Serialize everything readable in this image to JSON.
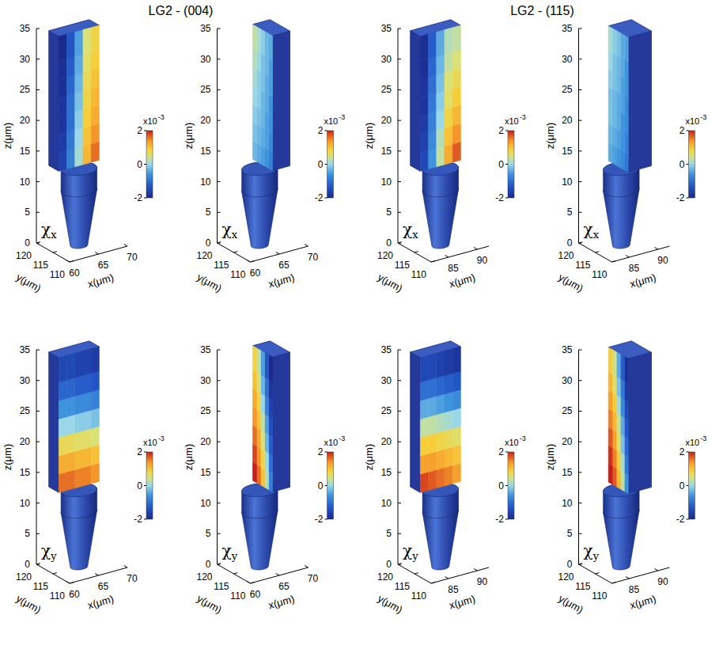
{
  "figure": {
    "titles": [
      "LG2 - (004)",
      "LG2 - (115)"
    ]
  },
  "chart_data": [
    {
      "type": "volume",
      "label": "χx",
      "xlabel": "x(μm)",
      "ylabel": "y(μm)",
      "zlabel": "z(μm)",
      "xlim": [
        60,
        70
      ],
      "xticks": [
        60,
        65,
        70
      ],
      "ylim": [
        110,
        120
      ],
      "yticks": [
        110,
        115,
        120
      ],
      "zlim": [
        0,
        35
      ],
      "zticks": [
        0,
        5,
        10,
        15,
        20,
        25,
        30,
        35
      ],
      "tip": {
        "x": 64.5,
        "y": 115,
        "z": [
          0,
          9,
          12.5
        ],
        "r": [
          1.3,
          2.7
        ]
      },
      "wire": {
        "x": [
          61,
          68
        ],
        "y": [
          112,
          118
        ],
        "z": [
          13,
          35
        ]
      },
      "plane": {
        "axis": "y",
        "value": 115
      },
      "cells": {
        "z": [
          13,
          16,
          19,
          22,
          25,
          28,
          31,
          35
        ],
        "s": [
          61,
          62.4,
          63.8,
          65.2,
          66.6,
          68
        ],
        "values": [
          [
            -1.6,
            -0.8,
            0.1,
            1.1,
            1.6
          ],
          [
            -1.7,
            -0.9,
            0.0,
            1.0,
            1.4
          ],
          [
            -1.8,
            -1.0,
            -0.1,
            0.9,
            1.2
          ],
          [
            -1.8,
            -1.0,
            -0.2,
            0.8,
            1.1
          ],
          [
            -1.9,
            -1.1,
            -0.3,
            0.7,
            1.0
          ],
          [
            -1.9,
            -1.2,
            -0.4,
            0.6,
            0.9
          ],
          [
            -2.0,
            -1.3,
            -0.5,
            0.5,
            0.8
          ]
        ]
      },
      "colorbar": {
        "range": [
          -2,
          2
        ],
        "ticks": [
          -2,
          0,
          2
        ],
        "multiplier": "x10",
        "exponent": "-3"
      }
    },
    {
      "type": "volume",
      "label": "χx",
      "xlabel": "x(μm)",
      "ylabel": "y(μm)",
      "zlabel": "z(μm)",
      "xlim": [
        60,
        70
      ],
      "xticks": [
        60,
        65,
        70
      ],
      "ylim": [
        110,
        120
      ],
      "yticks": [
        110,
        115,
        120
      ],
      "zlim": [
        0,
        35
      ],
      "zticks": [
        0,
        5,
        10,
        15,
        20,
        25,
        30,
        35
      ],
      "tip": {
        "x": 64.5,
        "y": 115,
        "z": [
          0,
          9,
          12.5
        ],
        "r": [
          1.3,
          2.7
        ]
      },
      "wire": {
        "x": [
          61,
          68
        ],
        "y": [
          112,
          118
        ],
        "z": [
          13,
          35
        ]
      },
      "plane": {
        "axis": "x",
        "value": 65
      },
      "cells": {
        "z": [
          13,
          16,
          19,
          22,
          25,
          28,
          31,
          35
        ],
        "s": [
          112,
          113.2,
          114.4,
          115.6,
          116.8,
          118
        ],
        "values": [
          [
            -0.8,
            -0.6,
            -0.5,
            -0.4,
            -0.3
          ],
          [
            -0.7,
            -0.5,
            -0.4,
            -0.3,
            -0.2
          ],
          [
            -0.6,
            -0.5,
            -0.3,
            -0.2,
            -0.1
          ],
          [
            -0.6,
            -0.4,
            -0.3,
            -0.1,
            0.0
          ],
          [
            -0.5,
            -0.4,
            -0.2,
            -0.1,
            0.1
          ],
          [
            -0.5,
            -0.3,
            -0.2,
            0.0,
            0.2
          ],
          [
            -0.4,
            -0.3,
            -0.1,
            0.1,
            0.3
          ]
        ]
      },
      "colorbar": {
        "range": [
          -2,
          2
        ],
        "ticks": [
          -2,
          0,
          2
        ],
        "multiplier": "x10",
        "exponent": "-3"
      }
    },
    {
      "type": "volume",
      "label": "χx",
      "xlabel": "x(μm)",
      "ylabel": "y(μm)",
      "zlabel": "z(μm)",
      "xlim": [
        82,
        92
      ],
      "xticks": [
        85,
        90
      ],
      "ylim": [
        110,
        120
      ],
      "yticks": [
        110,
        115,
        120
      ],
      "zlim": [
        0,
        35
      ],
      "zticks": [
        0,
        5,
        10,
        15,
        20,
        25,
        30,
        35
      ],
      "tip": {
        "x": 86.5,
        "y": 115,
        "z": [
          0,
          9,
          12.5
        ],
        "r": [
          1.3,
          2.7
        ]
      },
      "wire": {
        "x": [
          83,
          90
        ],
        "y": [
          112,
          118
        ],
        "z": [
          13,
          35
        ]
      },
      "plane": {
        "axis": "y",
        "value": 115
      },
      "cells": {
        "z": [
          13,
          16,
          19,
          22,
          25,
          28,
          31,
          35
        ],
        "s": [
          83,
          84.4,
          85.8,
          87.2,
          88.6,
          90
        ],
        "values": [
          [
            -1.5,
            -0.6,
            0.3,
            1.2,
            1.7
          ],
          [
            -1.6,
            -0.7,
            0.2,
            1.0,
            1.4
          ],
          [
            -1.7,
            -0.8,
            0.0,
            0.8,
            1.1
          ],
          [
            -1.8,
            -0.9,
            -0.1,
            0.6,
            0.9
          ],
          [
            -1.8,
            -1.0,
            -0.2,
            0.5,
            0.7
          ],
          [
            -1.9,
            -1.1,
            -0.3,
            0.3,
            0.5
          ],
          [
            -1.9,
            -1.2,
            -0.4,
            0.2,
            0.3
          ]
        ]
      },
      "colorbar": {
        "range": [
          -2,
          2
        ],
        "ticks": [
          -2,
          0,
          2
        ],
        "multiplier": "x10",
        "exponent": "-3"
      }
    },
    {
      "type": "volume",
      "label": "χx",
      "xlabel": "x(μm)",
      "ylabel": "y(μm)",
      "zlabel": "z(μm)",
      "xlim": [
        82,
        92
      ],
      "xticks": [
        85,
        90
      ],
      "ylim": [
        110,
        120
      ],
      "yticks": [
        110,
        115,
        120
      ],
      "zlim": [
        0,
        35
      ],
      "zticks": [
        0,
        5,
        10,
        15,
        20,
        25,
        30,
        35
      ],
      "tip": {
        "x": 86.5,
        "y": 115,
        "z": [
          0,
          9,
          12.5
        ],
        "r": [
          1.3,
          2.7
        ]
      },
      "wire": {
        "x": [
          83,
          90
        ],
        "y": [
          112,
          118
        ],
        "z": [
          13,
          35
        ]
      },
      "plane": {
        "axis": "x",
        "value": 86
      },
      "cells": {
        "z": [
          13,
          16,
          19,
          22,
          25,
          28,
          31,
          35
        ],
        "s": [
          112,
          113.2,
          114.4,
          115.6,
          116.8,
          118
        ],
        "values": [
          [
            -0.9,
            -0.7,
            -0.6,
            -0.5,
            -0.4
          ],
          [
            -0.8,
            -0.6,
            -0.5,
            -0.4,
            -0.3
          ],
          [
            -0.7,
            -0.6,
            -0.4,
            -0.3,
            -0.2
          ],
          [
            -0.7,
            -0.5,
            -0.4,
            -0.3,
            -0.2
          ],
          [
            -0.6,
            -0.5,
            -0.3,
            -0.2,
            -0.1
          ],
          [
            -0.6,
            -0.4,
            -0.3,
            -0.2,
            0.0
          ],
          [
            -0.5,
            -0.4,
            -0.2,
            -0.1,
            0.1
          ]
        ]
      },
      "colorbar": {
        "range": [
          -2,
          2
        ],
        "ticks": [
          -2,
          0,
          2
        ],
        "multiplier": "x10",
        "exponent": "-3"
      }
    },
    {
      "type": "volume",
      "label": "χy",
      "xlabel": "x(μm)",
      "ylabel": "y(μm)",
      "zlabel": "z(μm)",
      "xlim": [
        60,
        70
      ],
      "xticks": [
        60,
        65,
        70
      ],
      "ylim": [
        110,
        120
      ],
      "yticks": [
        110,
        115,
        120
      ],
      "zlim": [
        0,
        35
      ],
      "zticks": [
        0,
        5,
        10,
        15,
        20,
        25,
        30,
        35
      ],
      "tip": {
        "x": 64.5,
        "y": 115,
        "z": [
          0,
          9,
          12.5
        ],
        "r": [
          1.3,
          2.7
        ]
      },
      "wire": {
        "x": [
          61,
          68
        ],
        "y": [
          112,
          118
        ],
        "z": [
          13,
          35
        ]
      },
      "plane": {
        "axis": "y",
        "value": 115
      },
      "cells": {
        "z": [
          13,
          16,
          19,
          22,
          25,
          28,
          31,
          35
        ],
        "s": [
          61,
          62.4,
          63.8,
          65.2,
          66.6,
          68
        ],
        "values": [
          [
            1.6,
            1.6,
            1.5,
            1.5,
            1.4
          ],
          [
            1.2,
            1.2,
            1.1,
            1.1,
            1.0
          ],
          [
            0.7,
            0.7,
            0.6,
            0.6,
            0.5
          ],
          [
            0.0,
            0.0,
            -0.1,
            -0.1,
            -0.2
          ],
          [
            -0.6,
            -0.6,
            -0.7,
            -0.7,
            -0.8
          ],
          [
            -1.1,
            -1.1,
            -1.2,
            -1.2,
            -1.3
          ],
          [
            -1.5,
            -1.5,
            -1.6,
            -1.6,
            -1.7
          ]
        ]
      },
      "colorbar": {
        "range": [
          -2,
          2
        ],
        "ticks": [
          -2,
          0,
          2
        ],
        "multiplier": "x10",
        "exponent": "-3"
      }
    },
    {
      "type": "volume",
      "label": "χy",
      "xlabel": "x(μm)",
      "ylabel": "y(μm)",
      "zlabel": "z(μm)",
      "xlim": [
        60,
        70
      ],
      "xticks": [
        60,
        65,
        70
      ],
      "ylim": [
        110,
        120
      ],
      "yticks": [
        110,
        115,
        120
      ],
      "zlim": [
        0,
        35
      ],
      "zticks": [
        0,
        5,
        10,
        15,
        20,
        25,
        30,
        35
      ],
      "tip": {
        "x": 64.5,
        "y": 115,
        "z": [
          0,
          9,
          12.5
        ],
        "r": [
          1.3,
          2.7
        ]
      },
      "wire": {
        "x": [
          61,
          68
        ],
        "y": [
          112,
          118
        ],
        "z": [
          13,
          35
        ]
      },
      "plane": {
        "axis": "x",
        "value": 65
      },
      "cells": {
        "z": [
          13,
          16,
          19,
          22,
          25,
          28,
          31,
          35
        ],
        "s": [
          112,
          113.2,
          114.4,
          115.6,
          116.8,
          118
        ],
        "values": [
          [
            -0.8,
            0.2,
            1.0,
            1.6,
            2.0
          ],
          [
            -1.0,
            0.0,
            0.8,
            1.4,
            1.8
          ],
          [
            -1.2,
            -0.3,
            0.5,
            1.2,
            1.6
          ],
          [
            -1.4,
            -0.5,
            0.3,
            1.0,
            1.4
          ],
          [
            -1.6,
            -0.8,
            0.0,
            0.8,
            1.2
          ],
          [
            -1.8,
            -1.0,
            -0.3,
            0.5,
            1.0
          ],
          [
            -2.0,
            -1.3,
            -0.5,
            0.3,
            0.8
          ]
        ]
      },
      "colorbar": {
        "range": [
          -2,
          2
        ],
        "ticks": [
          -2,
          0,
          2
        ],
        "multiplier": "x10",
        "exponent": "-3"
      }
    },
    {
      "type": "volume",
      "label": "χy",
      "xlabel": "x(μm)",
      "ylabel": "y(μm)",
      "zlabel": "z(μm)",
      "xlim": [
        82,
        92
      ],
      "xticks": [
        85,
        90
      ],
      "ylim": [
        110,
        120
      ],
      "yticks": [
        110,
        115,
        120
      ],
      "zlim": [
        0,
        35
      ],
      "zticks": [
        0,
        5,
        10,
        15,
        20,
        25,
        30,
        35
      ],
      "tip": {
        "x": 86.5,
        "y": 115,
        "z": [
          0,
          9,
          12.5
        ],
        "r": [
          1.3,
          2.7
        ]
      },
      "wire": {
        "x": [
          83,
          90
        ],
        "y": [
          112,
          118
        ],
        "z": [
          13,
          35
        ]
      },
      "plane": {
        "axis": "y",
        "value": 115
      },
      "cells": {
        "z": [
          13,
          16,
          19,
          22,
          25,
          28,
          31,
          35
        ],
        "s": [
          83,
          84.4,
          85.8,
          87.2,
          88.6,
          90
        ],
        "values": [
          [
            1.8,
            1.7,
            1.6,
            1.5,
            1.3
          ],
          [
            1.3,
            1.3,
            1.2,
            1.1,
            1.0
          ],
          [
            0.9,
            0.9,
            0.8,
            0.7,
            0.6
          ],
          [
            0.3,
            0.3,
            0.2,
            0.1,
            0.0
          ],
          [
            -0.4,
            -0.4,
            -0.5,
            -0.6,
            -0.7
          ],
          [
            -1.0,
            -1.0,
            -1.1,
            -1.2,
            -1.3
          ],
          [
            -1.5,
            -1.5,
            -1.6,
            -1.7,
            -1.8
          ]
        ]
      },
      "colorbar": {
        "range": [
          -2,
          2
        ],
        "ticks": [
          -2,
          0,
          2
        ],
        "multiplier": "x10",
        "exponent": "-3"
      }
    },
    {
      "type": "volume",
      "label": "χy",
      "xlabel": "x(μm)",
      "ylabel": "y(μm)",
      "zlabel": "z(μm)",
      "xlim": [
        82,
        92
      ],
      "xticks": [
        85,
        90
      ],
      "ylim": [
        110,
        120
      ],
      "yticks": [
        110,
        115,
        120
      ],
      "zlim": [
        0,
        35
      ],
      "zticks": [
        0,
        5,
        10,
        15,
        20,
        25,
        30,
        35
      ],
      "tip": {
        "x": 86.5,
        "y": 115,
        "z": [
          0,
          9,
          12.5
        ],
        "r": [
          1.3,
          2.7
        ]
      },
      "wire": {
        "x": [
          83,
          90
        ],
        "y": [
          112,
          118
        ],
        "z": [
          13,
          35
        ]
      },
      "plane": {
        "axis": "x",
        "value": 86
      },
      "cells": {
        "z": [
          13,
          16,
          19,
          22,
          25,
          28,
          31,
          35
        ],
        "s": [
          112,
          113.2,
          114.4,
          115.6,
          116.8,
          118
        ],
        "values": [
          [
            -0.6,
            0.3,
            1.1,
            1.7,
            2.0
          ],
          [
            -0.9,
            0.1,
            0.9,
            1.5,
            1.9
          ],
          [
            -1.1,
            -0.2,
            0.6,
            1.3,
            1.7
          ],
          [
            -1.3,
            -0.4,
            0.4,
            1.1,
            1.5
          ],
          [
            -1.5,
            -0.7,
            0.1,
            0.9,
            1.3
          ],
          [
            -1.7,
            -0.9,
            -0.2,
            0.6,
            1.1
          ],
          [
            -1.9,
            -1.2,
            -0.4,
            0.4,
            0.9
          ]
        ]
      },
      "colorbar": {
        "range": [
          -2,
          2
        ],
        "ticks": [
          -2,
          0,
          2
        ],
        "multiplier": "x10",
        "exponent": "-3"
      }
    }
  ]
}
